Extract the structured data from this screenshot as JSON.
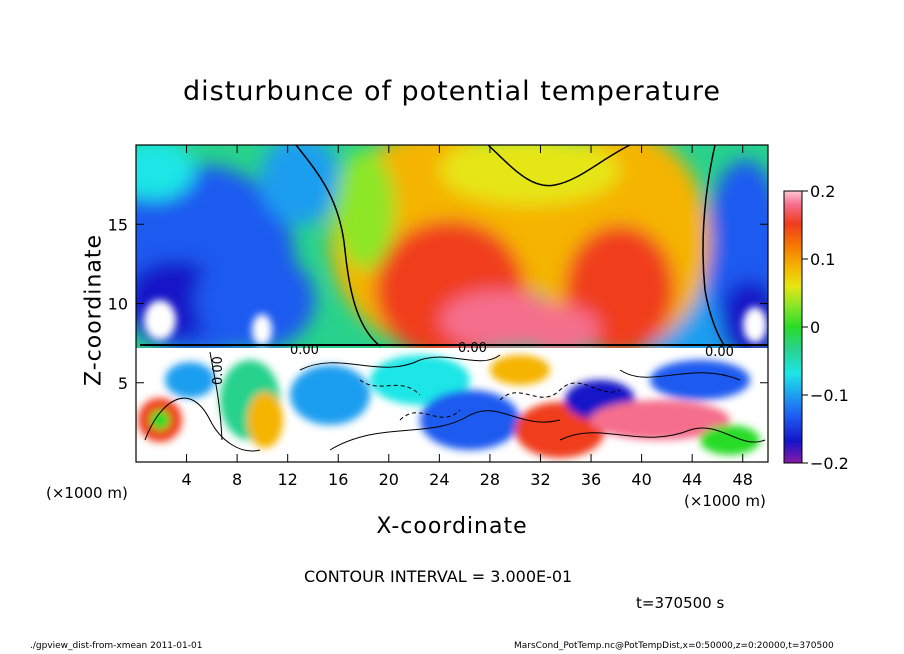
{
  "chart_data": {
    "type": "heatmap",
    "title": "disturbunce of potential temperature",
    "xlabel": "X-coordinate",
    "ylabel": "Z-coordinate",
    "x_unit_label": "(×1000 m)",
    "x_ticks": [
      "4",
      "8",
      "12",
      "16",
      "20",
      "24",
      "28",
      "32",
      "36",
      "40",
      "44",
      "48"
    ],
    "y_ticks": [
      "5",
      "10",
      "15"
    ],
    "xlim": [
      0,
      50
    ],
    "ylim": [
      0,
      20
    ],
    "colorbar": {
      "ticks": [
        "0.2",
        "0.1",
        "0",
        "−0.1",
        "−0.2"
      ],
      "range": [
        -0.2,
        0.2
      ]
    },
    "contour_labels": [
      "0.00",
      "0.00",
      "0.00",
      "0.00"
    ],
    "contour_interval": "CONTOUR INTERVAL = 3.000E-01",
    "time": "t=370500 s",
    "footer_left": "./gpview_dist-from-xmean  2011-01-01",
    "footer_right": "MarsCond_PotTemp.nc@PotTempDist,x=0:50000,z=0:20000,t=370500",
    "colors": {
      "scale": [
        "#8a1aa6",
        "#1414c8",
        "#1e5af0",
        "#1e9ef0",
        "#1ee6e6",
        "#28d28c",
        "#28dc28",
        "#8ce628",
        "#e6e614",
        "#f5b400",
        "#f57800",
        "#f03c1e",
        "#f56e8c",
        "#ffc8d2"
      ]
    }
  }
}
